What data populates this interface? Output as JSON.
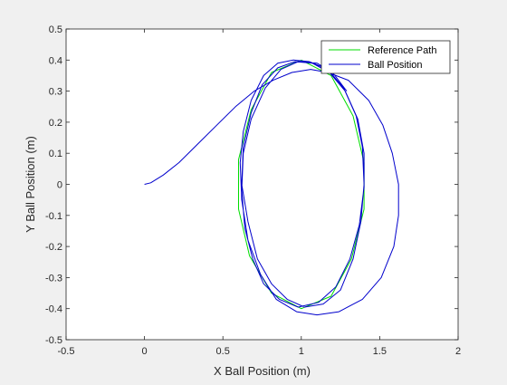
{
  "chart_data": {
    "type": "line",
    "title": "",
    "xlabel": "X Ball Position (m)",
    "ylabel": "Y Ball Position (m)",
    "xlim": [
      -0.5,
      2
    ],
    "ylim": [
      -0.5,
      0.5
    ],
    "xticks": [
      "-0.5",
      "0",
      "0.5",
      "1",
      "1.5",
      "2"
    ],
    "yticks": [
      "-0.5",
      "-0.4",
      "-0.3",
      "-0.2",
      "-0.1",
      "0",
      "0.1",
      "0.2",
      "0.3",
      "0.4",
      "0.5"
    ],
    "xtick_values": [
      -0.5,
      0,
      0.5,
      1,
      1.5,
      2
    ],
    "ytick_values": [
      -0.5,
      -0.4,
      -0.3,
      -0.2,
      -0.1,
      0,
      0.1,
      0.2,
      0.3,
      0.4,
      0.5
    ],
    "grid": false,
    "legend_position": "top-right",
    "series": [
      {
        "name": "Reference Path",
        "color": "#00dd00",
        "x": [
          1.0,
          1.19,
          1.33,
          1.4,
          1.4,
          1.32,
          1.19,
          1.0,
          0.81,
          0.67,
          0.6,
          0.6,
          0.68,
          0.81,
          1.0
        ],
        "y": [
          0.4,
          0.35,
          0.22,
          0.07,
          -0.08,
          -0.24,
          -0.36,
          -0.4,
          -0.35,
          -0.23,
          -0.08,
          0.08,
          0.24,
          0.36,
          0.4
        ]
      },
      {
        "name": "Ball Position",
        "color": "#0000cc",
        "x": [
          0.0,
          0.04,
          0.12,
          0.22,
          0.34,
          0.46,
          0.58,
          0.7,
          0.82,
          0.94,
          1.06,
          1.17,
          1.3,
          1.43,
          1.52,
          1.58,
          1.62,
          1.62,
          1.59,
          1.51,
          1.39,
          1.24,
          1.1,
          0.97,
          0.84,
          0.74,
          0.66,
          0.62,
          0.61,
          0.63,
          0.68,
          0.76,
          0.85,
          0.95,
          1.05,
          1.17,
          1.27,
          1.35,
          1.39,
          1.4,
          1.38,
          1.33,
          1.25,
          1.14,
          1.02,
          0.91,
          0.81,
          0.72,
          0.66,
          0.62,
          0.63,
          0.68,
          0.75,
          0.85,
          0.96,
          1.07,
          1.18,
          1.28,
          1.36,
          1.4,
          1.4,
          1.37,
          1.31,
          1.22,
          1.11,
          0.98,
          0.86,
          0.76,
          0.69,
          0.64,
          0.62,
          0.63,
          0.68,
          0.77,
          0.87,
          0.98,
          1.1,
          1.2,
          1.29
        ],
        "y": [
          0.0,
          0.005,
          0.03,
          0.07,
          0.13,
          0.19,
          0.25,
          0.3,
          0.335,
          0.36,
          0.37,
          0.36,
          0.335,
          0.27,
          0.19,
          0.1,
          0.0,
          -0.1,
          -0.2,
          -0.3,
          -0.37,
          -0.41,
          -0.42,
          -0.41,
          -0.37,
          -0.29,
          -0.18,
          -0.05,
          0.07,
          0.17,
          0.27,
          0.35,
          0.39,
          0.4,
          0.395,
          0.37,
          0.31,
          0.22,
          0.12,
          0.0,
          -0.12,
          -0.24,
          -0.34,
          -0.385,
          -0.395,
          -0.37,
          -0.32,
          -0.24,
          -0.12,
          0.0,
          0.12,
          0.23,
          0.32,
          0.375,
          0.395,
          0.39,
          0.36,
          0.3,
          0.21,
          0.1,
          -0.01,
          -0.13,
          -0.24,
          -0.33,
          -0.38,
          -0.395,
          -0.37,
          -0.32,
          -0.24,
          -0.14,
          -0.02,
          0.1,
          0.21,
          0.31,
          0.37,
          0.395,
          0.39,
          0.36,
          0.3
        ]
      }
    ]
  }
}
